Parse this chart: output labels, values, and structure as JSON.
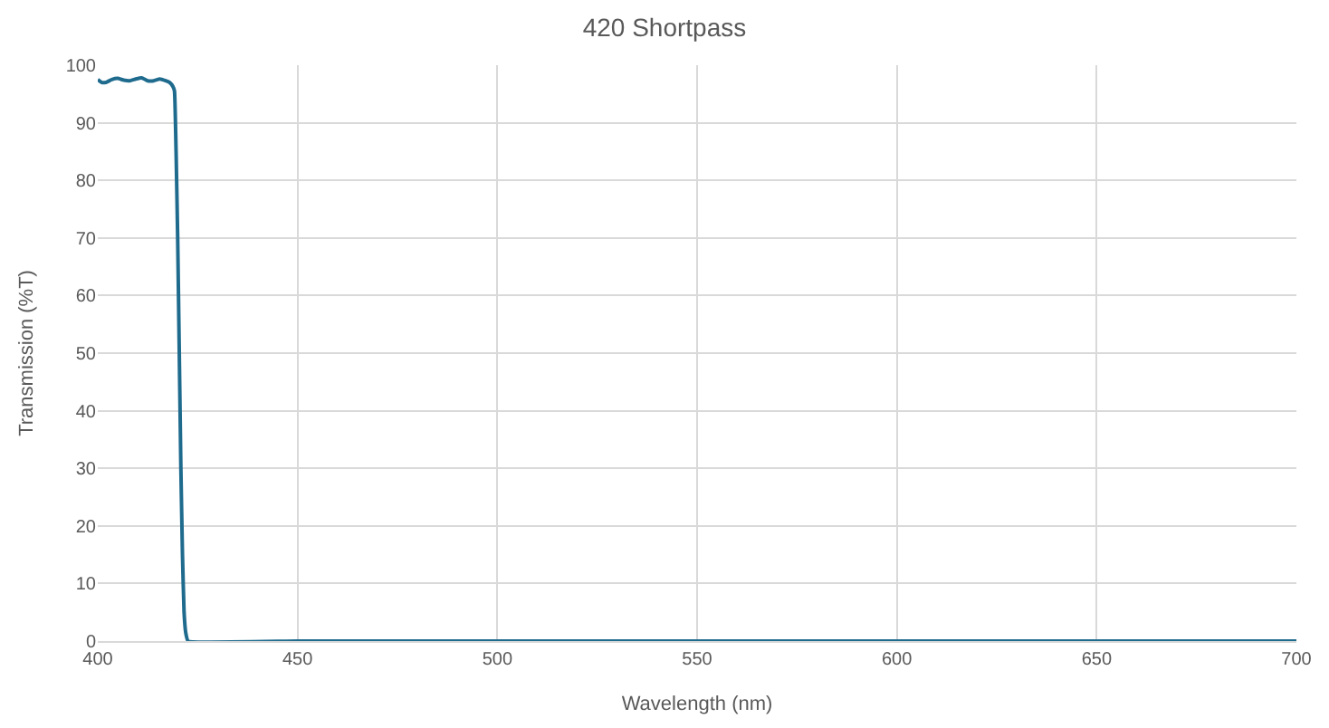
{
  "chart_data": {
    "type": "line",
    "title": "420 Shortpass",
    "xlabel": "Wavelength (nm)",
    "ylabel": "Transmission (%T)",
    "series": [
      {
        "color": "#1f6b8e",
        "x": [
          400,
          401,
          402,
          403.5,
          405,
          406.5,
          408,
          409.5,
          411,
          412.5,
          414,
          415.5,
          417,
          418,
          418.8,
          419.2,
          419.6,
          420.0,
          420.4,
          420.8,
          421.2,
          421.6,
          422.0,
          422.6,
          450,
          500,
          515,
          530,
          600,
          650,
          700
        ],
        "values": [
          97.5,
          97.0,
          97.0,
          97.5,
          97.7,
          97.4,
          97.3,
          97.6,
          97.8,
          97.3,
          97.3,
          97.6,
          97.3,
          97.0,
          96.3,
          95.5,
          85,
          70,
          50,
          30,
          15,
          5,
          1.5,
          0,
          0,
          0,
          0,
          0,
          0,
          0,
          0
        ]
      }
    ],
    "xlim": [
      400,
      700
    ],
    "xticks": [
      400,
      450,
      500,
      550,
      600,
      650,
      700
    ],
    "ylim": [
      0,
      100
    ],
    "yticks": [
      0,
      10,
      20,
      30,
      40,
      50,
      60,
      70,
      80,
      90,
      100
    ],
    "grid": true,
    "marker": "none",
    "line_style": "solid"
  }
}
